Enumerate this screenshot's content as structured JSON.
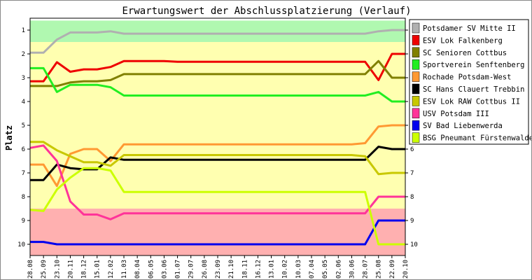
{
  "chart_data": {
    "type": "line",
    "title": "Erwartungswert der Abschlussplatzierung (Verlauf)",
    "ylabel": "Platz",
    "xlabel": "",
    "ylim": [
      1,
      10
    ],
    "y_inverted": true,
    "y_ticks": [
      1,
      2,
      3,
      4,
      5,
      6,
      7,
      8,
      9,
      10
    ],
    "grid": false,
    "legend_position": "right",
    "zones": [
      {
        "from": 0.6,
        "to": 1.5,
        "color": "#b0f8b0"
      },
      {
        "from": 1.5,
        "to": 8.5,
        "color": "#ffffb0"
      },
      {
        "from": 8.5,
        "to": 10.5,
        "color": "#ffb0b0"
      }
    ],
    "x": [
      "28.08",
      "25.09",
      "23.10",
      "20.11",
      "18.12",
      "15.01",
      "12.02",
      "11.03",
      "08.04",
      "06.05",
      "03.06",
      "01.07",
      "29.07",
      "26.08",
      "23.09",
      "21.10",
      "18.11",
      "16.12",
      "13.01",
      "10.02",
      "10.03",
      "07.04",
      "05.05",
      "02.06",
      "30.06",
      "28.07",
      "25.08",
      "22.09",
      "20.10"
    ],
    "series": [
      {
        "name": "Potsdamer SV Mitte II",
        "color": "#b0b0b0",
        "values": [
          1.95,
          1.95,
          1.4,
          1.1,
          1.1,
          1.1,
          1.05,
          1.15,
          1.15,
          1.15,
          1.15,
          1.15,
          1.15,
          1.15,
          1.15,
          1.15,
          1.15,
          1.15,
          1.15,
          1.15,
          1.15,
          1.15,
          1.15,
          1.15,
          1.15,
          1.15,
          1.05,
          1.0,
          1.0
        ]
      },
      {
        "name": "ESV Lok Falkenberg",
        "color": "#ee0000",
        "values": [
          3.15,
          3.15,
          2.35,
          2.75,
          2.65,
          2.65,
          2.55,
          2.3,
          2.3,
          2.3,
          2.3,
          2.33,
          2.33,
          2.33,
          2.33,
          2.33,
          2.33,
          2.33,
          2.33,
          2.33,
          2.33,
          2.33,
          2.33,
          2.33,
          2.33,
          2.33,
          3.1,
          2.0,
          2.0
        ]
      },
      {
        "name": "SC Senioren Cottbus",
        "color": "#808000",
        "values": [
          3.35,
          3.35,
          3.35,
          3.2,
          3.15,
          3.15,
          3.1,
          2.85,
          2.85,
          2.85,
          2.85,
          2.85,
          2.85,
          2.85,
          2.85,
          2.85,
          2.85,
          2.85,
          2.85,
          2.85,
          2.85,
          2.85,
          2.85,
          2.85,
          2.85,
          2.85,
          2.3,
          3.0,
          3.0
        ]
      },
      {
        "name": "Sportverein Senftenberg",
        "color": "#22ee22",
        "values": [
          2.6,
          2.6,
          3.6,
          3.3,
          3.3,
          3.3,
          3.4,
          3.75,
          3.75,
          3.75,
          3.75,
          3.75,
          3.75,
          3.75,
          3.75,
          3.75,
          3.75,
          3.75,
          3.75,
          3.75,
          3.75,
          3.75,
          3.75,
          3.75,
          3.75,
          3.75,
          3.6,
          4.0,
          4.0
        ]
      },
      {
        "name": "Rochade Potsdam-West",
        "color": "#ff9933",
        "values": [
          6.65,
          6.65,
          7.55,
          6.2,
          6.0,
          6.0,
          6.5,
          5.8,
          5.8,
          5.8,
          5.8,
          5.8,
          5.8,
          5.8,
          5.8,
          5.8,
          5.8,
          5.8,
          5.8,
          5.8,
          5.8,
          5.8,
          5.8,
          5.8,
          5.8,
          5.75,
          5.05,
          5.0,
          5.0
        ]
      },
      {
        "name": "SC Hans Clauert Trebbin",
        "color": "#000000",
        "values": [
          7.3,
          7.3,
          6.65,
          6.8,
          6.85,
          6.85,
          6.35,
          6.45,
          6.45,
          6.45,
          6.45,
          6.45,
          6.45,
          6.45,
          6.45,
          6.45,
          6.45,
          6.45,
          6.45,
          6.45,
          6.45,
          6.45,
          6.45,
          6.45,
          6.45,
          6.45,
          5.9,
          6.0,
          6.0
        ]
      },
      {
        "name": "ESV Lok RAW Cottbus II",
        "color": "#c8c800",
        "values": [
          5.7,
          5.7,
          6.05,
          6.3,
          6.55,
          6.55,
          6.7,
          6.25,
          6.25,
          6.25,
          6.25,
          6.25,
          6.25,
          6.25,
          6.25,
          6.25,
          6.25,
          6.25,
          6.25,
          6.25,
          6.25,
          6.25,
          6.25,
          6.25,
          6.25,
          6.3,
          7.05,
          7.0,
          7.0
        ]
      },
      {
        "name": "USV Potsdam III",
        "color": "#ff3399",
        "values": [
          5.95,
          5.85,
          6.5,
          8.2,
          8.75,
          8.75,
          8.95,
          8.7,
          8.7,
          8.7,
          8.7,
          8.7,
          8.7,
          8.7,
          8.7,
          8.7,
          8.7,
          8.7,
          8.7,
          8.7,
          8.7,
          8.7,
          8.7,
          8.7,
          8.7,
          8.7,
          8.0,
          8.0,
          8.0
        ]
      },
      {
        "name": "SV Bad Liebenwerda",
        "color": "#0000ee",
        "values": [
          9.9,
          9.9,
          10.0,
          10.0,
          10.0,
          10.0,
          10.0,
          10.0,
          10.0,
          10.0,
          10.0,
          10.0,
          10.0,
          10.0,
          10.0,
          10.0,
          10.0,
          10.0,
          10.0,
          10.0,
          10.0,
          10.0,
          10.0,
          10.0,
          10.0,
          10.0,
          9.0,
          9.0,
          9.0
        ]
      },
      {
        "name": "BSG Pneumant Fürstenwalde",
        "color": "#ccff00",
        "values": [
          8.55,
          8.6,
          7.7,
          7.2,
          6.8,
          6.8,
          6.9,
          7.8,
          7.8,
          7.8,
          7.8,
          7.8,
          7.8,
          7.8,
          7.8,
          7.8,
          7.8,
          7.8,
          7.8,
          7.8,
          7.8,
          7.8,
          7.8,
          7.8,
          7.8,
          7.8,
          10.0,
          10.0,
          10.0
        ]
      }
    ]
  }
}
